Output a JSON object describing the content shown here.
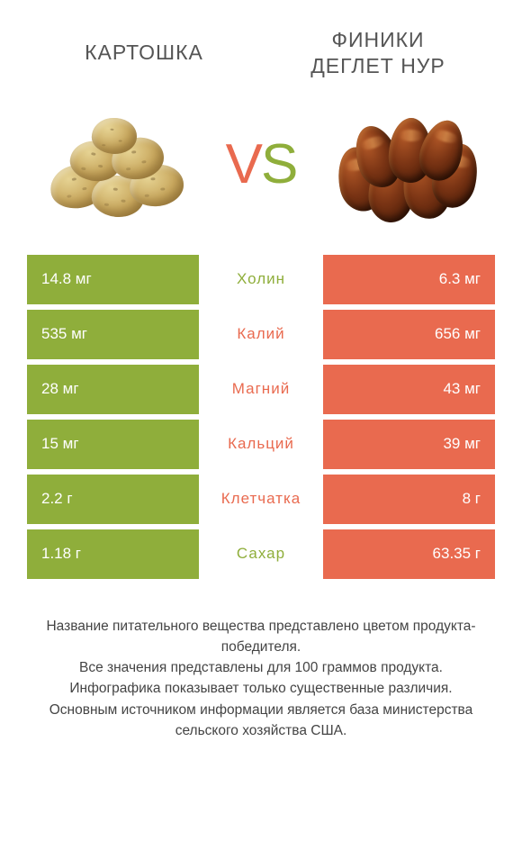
{
  "header": {
    "left_title": "КАРТОШКА",
    "right_title_line1": "ФИНИКИ",
    "right_title_line2": "ДЕГЛЕТ НУР"
  },
  "vs": {
    "v": "V",
    "s": "S"
  },
  "colors": {
    "left_bg": "#8fae3b",
    "right_bg": "#e96a4f",
    "left_text_winner": "#8fae3b",
    "right_text_winner": "#e96a4f",
    "background": "#ffffff",
    "footer_text": "#444444"
  },
  "rows": [
    {
      "left": "14.8 мг",
      "mid": "Холин",
      "right": "6.3 мг",
      "winner": "left"
    },
    {
      "left": "535 мг",
      "mid": "Калий",
      "right": "656 мг",
      "winner": "right"
    },
    {
      "left": "28 мг",
      "mid": "Магний",
      "right": "43 мг",
      "winner": "right"
    },
    {
      "left": "15 мг",
      "mid": "Кальций",
      "right": "39 мг",
      "winner": "right"
    },
    {
      "left": "2.2 г",
      "mid": "Клетчатка",
      "right": "8 г",
      "winner": "right"
    },
    {
      "left": "1.18 г",
      "mid": "Сахар",
      "right": "63.35 г",
      "winner": "left"
    }
  ],
  "footer": {
    "line1": "Название питательного вещества представлено цветом продукта-победителя.",
    "line2": "Все значения представлены для 100 граммов продукта.",
    "line3": "Инфографика показывает только существенные различия.",
    "line4": "Основным источником информации является база министерства сельского хозяйства США."
  },
  "typography": {
    "header_fontsize": 23,
    "vs_fontsize": 62,
    "cell_fontsize": 17,
    "footer_fontsize": 15.5
  }
}
